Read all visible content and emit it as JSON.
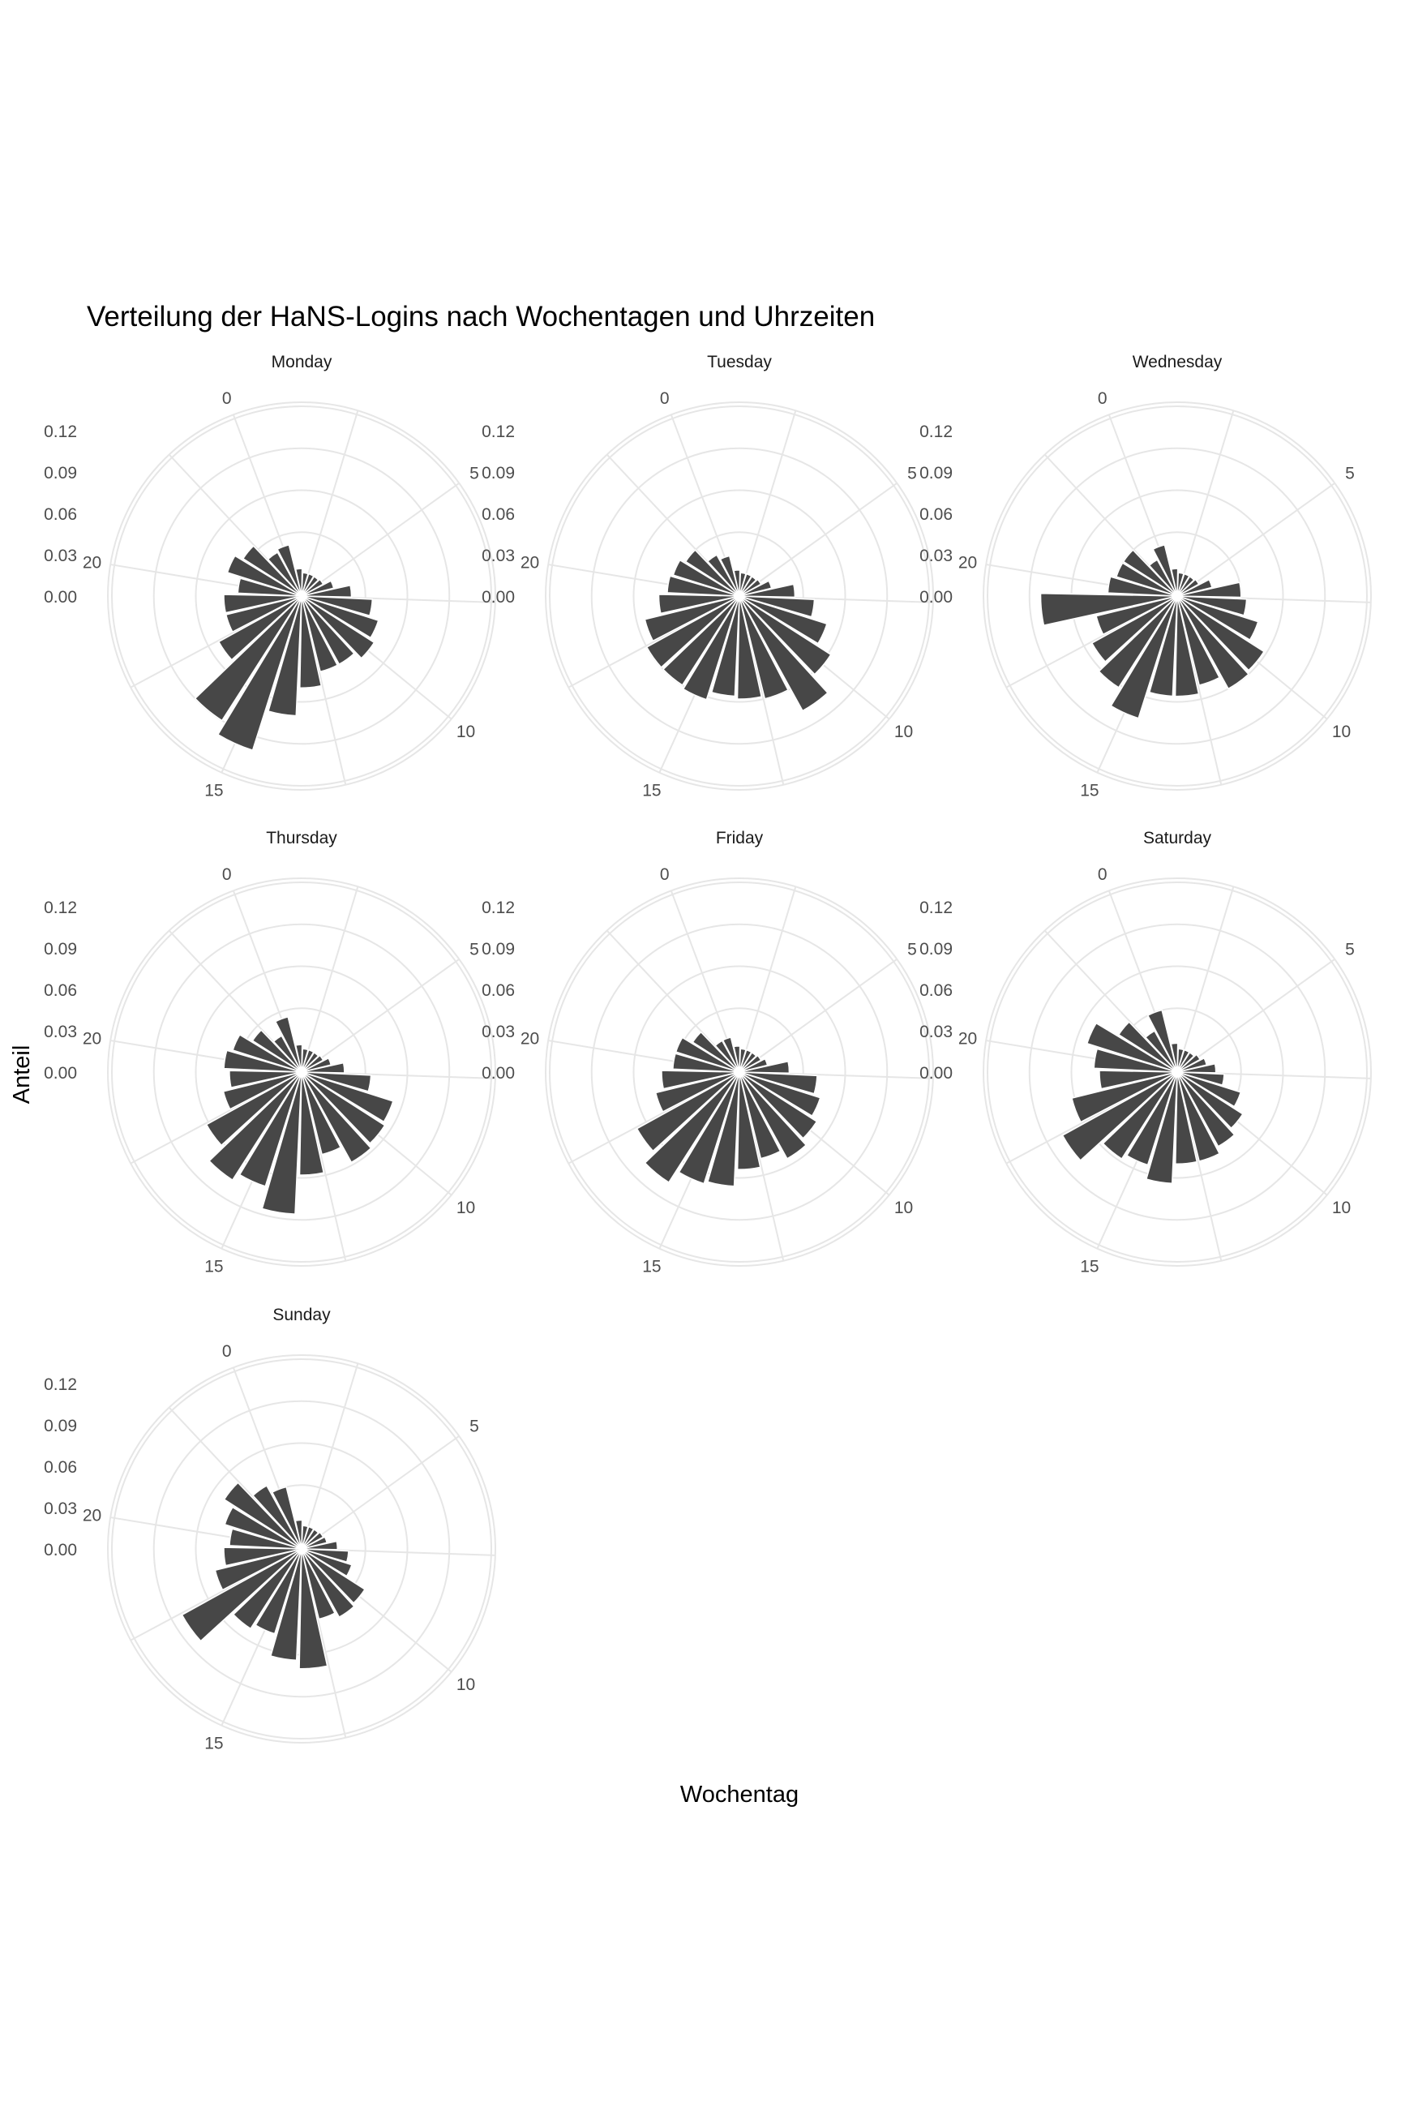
{
  "chart_data": {
    "type": "bar",
    "coord": "polar",
    "title": "Verteilung der HaNS-Logins nach Wochentagen und Uhrzeiten",
    "xlabel": "Wochentag",
    "ylabel": "Anteil",
    "x_breaks": [
      "0",
      "5",
      "10",
      "15",
      "20"
    ],
    "y_breaks": [
      "0.00",
      "0.03",
      "0.06",
      "0.09",
      "0.12"
    ],
    "ylim": [
      0,
      0.12
    ],
    "hours": [
      0,
      1,
      2,
      3,
      4,
      5,
      6,
      7,
      8,
      9,
      10,
      11,
      12,
      13,
      14,
      15,
      16,
      17,
      18,
      19,
      20,
      21,
      22,
      23
    ],
    "bar_color": "#474747",
    "grid": true,
    "facets": [
      {
        "name": "Monday",
        "values": [
          0.022,
          0.004,
          0.001,
          0.001,
          0.001,
          0.002,
          0.008,
          0.02,
          0.035,
          0.042,
          0.046,
          0.04,
          0.04,
          0.05,
          0.07,
          0.1,
          0.09,
          0.052,
          0.04,
          0.04,
          0.03,
          0.04,
          0.034,
          0.02
        ]
      },
      {
        "name": "Tuesday",
        "values": [
          0.014,
          0.003,
          0.001,
          0.001,
          0.001,
          0.002,
          0.008,
          0.024,
          0.038,
          0.05,
          0.062,
          0.078,
          0.06,
          0.058,
          0.056,
          0.062,
          0.06,
          0.06,
          0.054,
          0.042,
          0.036,
          0.034,
          0.03,
          0.018
        ]
      },
      {
        "name": "Wednesday",
        "values": [
          0.022,
          0.004,
          0.001,
          0.001,
          0.001,
          0.002,
          0.01,
          0.03,
          0.034,
          0.045,
          0.058,
          0.06,
          0.05,
          0.056,
          0.056,
          0.076,
          0.062,
          0.054,
          0.044,
          0.082,
          0.034,
          0.03,
          0.03,
          0.014
        ]
      },
      {
        "name": "Thursday",
        "values": [
          0.025,
          0.004,
          0.001,
          0.001,
          0.001,
          0.002,
          0.006,
          0.015,
          0.034,
          0.053,
          0.055,
          0.058,
          0.045,
          0.058,
          0.086,
          0.07,
          0.076,
          0.062,
          0.042,
          0.036,
          0.04,
          0.036,
          0.026,
          0.014
        ]
      },
      {
        "name": "Friday",
        "values": [
          0.01,
          0.003,
          0.001,
          0.001,
          0.001,
          0.002,
          0.005,
          0.02,
          0.04,
          0.045,
          0.05,
          0.055,
          0.048,
          0.054,
          0.066,
          0.068,
          0.078,
          0.068,
          0.046,
          0.04,
          0.032,
          0.032,
          0.024,
          0.01
        ]
      },
      {
        "name": "Saturday",
        "values": [
          0.03,
          0.005,
          0.001,
          0.001,
          0.001,
          0.003,
          0.006,
          0.012,
          0.018,
          0.032,
          0.04,
          0.045,
          0.05,
          0.05,
          0.064,
          0.054,
          0.058,
          0.078,
          0.062,
          0.04,
          0.044,
          0.052,
          0.034,
          0.018
        ]
      },
      {
        "name": "Sunday",
        "values": [
          0.03,
          0.005,
          0.001,
          0.001,
          0.001,
          0.002,
          0.003,
          0.01,
          0.018,
          0.022,
          0.038,
          0.04,
          0.036,
          0.07,
          0.064,
          0.048,
          0.052,
          0.082,
          0.048,
          0.04,
          0.036,
          0.042,
          0.05,
          0.036
        ]
      }
    ]
  }
}
